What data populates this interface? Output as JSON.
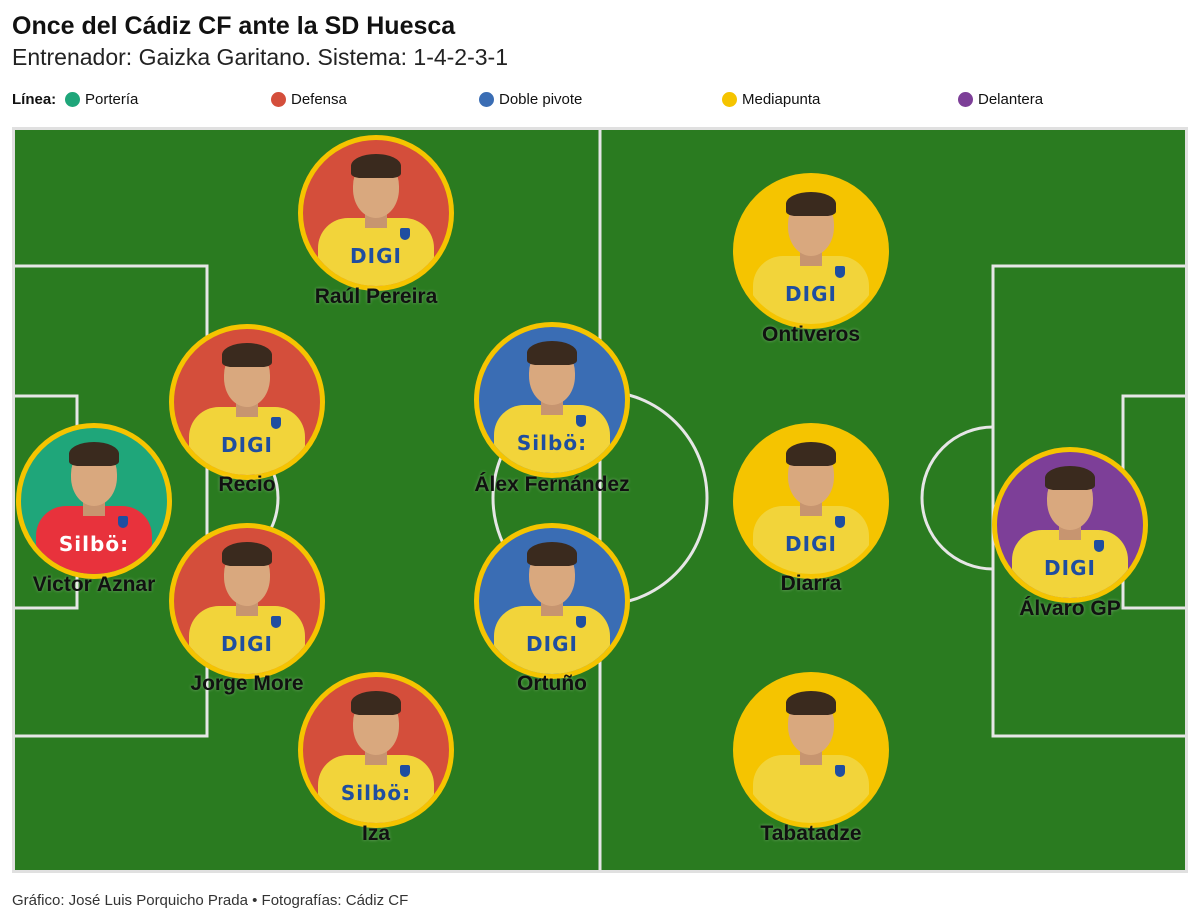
{
  "header": {
    "title": "Once del Cádiz CF ante la SD Huesca",
    "subtitle": "Entrenador: Gaizka Garitano. Sistema: 1-4-2-3-1"
  },
  "legend": {
    "title": "Línea:",
    "items": [
      {
        "label": "Portería",
        "color": "#1fa67a"
      },
      {
        "label": "Defensa",
        "color": "#d44e3b"
      },
      {
        "label": "Doble pivote",
        "color": "#3a6db4"
      },
      {
        "label": "Mediapunta",
        "color": "#f5c400"
      },
      {
        "label": "Delantera",
        "color": "#7d3f98"
      }
    ]
  },
  "colors": {
    "pitch": "#2a7b20",
    "lines": "#e6e6e6",
    "ring": "#f5c400",
    "shirt": "#f2d43a",
    "goalkeeper_shirt": "#e8323c",
    "sponsor_text": "#1f4ea0"
  },
  "players": [
    {
      "name": "Victor Aznar",
      "line": "Portería",
      "sponsor": "Silbö:"
    },
    {
      "name": "Raúl Pereira",
      "line": "Defensa",
      "sponsor": "DIGI"
    },
    {
      "name": "Recio",
      "line": "Defensa",
      "sponsor": "DIGI"
    },
    {
      "name": "Jorge More",
      "line": "Defensa",
      "sponsor": "DIGI"
    },
    {
      "name": "Iza",
      "line": "Defensa",
      "sponsor": "Silbö:"
    },
    {
      "name": "Álex Fernández",
      "line": "Doble pivote",
      "sponsor": "Silbö:"
    },
    {
      "name": "Ortuño",
      "line": "Doble pivote",
      "sponsor": "DIGI"
    },
    {
      "name": "Ontiveros",
      "line": "Mediapunta",
      "sponsor": "DIGI"
    },
    {
      "name": "Diarra",
      "line": "Mediapunta",
      "sponsor": "DIGI"
    },
    {
      "name": "Tabatadze",
      "line": "Mediapunta",
      "sponsor": ""
    },
    {
      "name": "Álvaro GP",
      "line": "Delantera",
      "sponsor": "DIGI"
    }
  ],
  "footer": {
    "credit": "Gráfico: José Luis Porquicho Prada • Fotografías: Cádiz CF"
  }
}
